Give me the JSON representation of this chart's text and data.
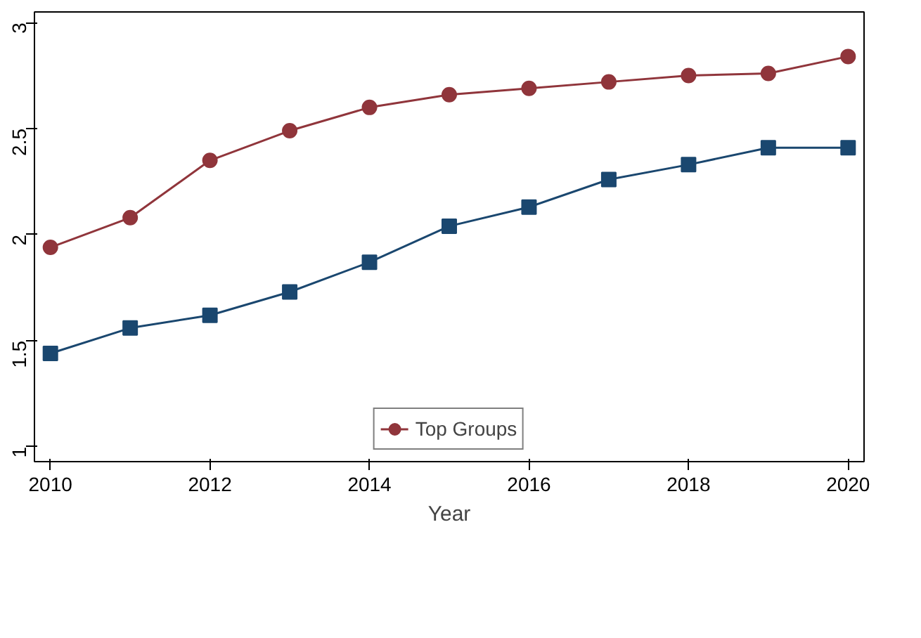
{
  "chart_data": {
    "type": "line",
    "xlabel": "Year",
    "x": [
      2010,
      2011,
      2012,
      2013,
      2014,
      2015,
      2016,
      2017,
      2018,
      2019,
      2020
    ],
    "series": [
      {
        "color": "#1a476f",
        "marker": "square",
        "values": [
          1.44,
          1.56,
          1.62,
          1.73,
          1.87,
          2.04,
          2.13,
          2.26,
          2.33,
          2.41,
          2.41
        ]
      },
      {
        "name": "Top Groups",
        "color": "#90353b",
        "marker": "circle",
        "values": [
          1.94,
          2.08,
          2.35,
          2.49,
          2.6,
          2.66,
          2.69,
          2.72,
          2.75,
          2.76,
          2.84
        ]
      }
    ],
    "xlim": [
      2009.8,
      2020.2
    ],
    "xticks": [
      2010,
      2012,
      2014,
      2016,
      2018,
      2020
    ],
    "ylim": [
      0.93,
      3.05
    ],
    "yticks": [
      1,
      1.5,
      2,
      2.5,
      3
    ],
    "grid": false,
    "legend": "bottom"
  }
}
